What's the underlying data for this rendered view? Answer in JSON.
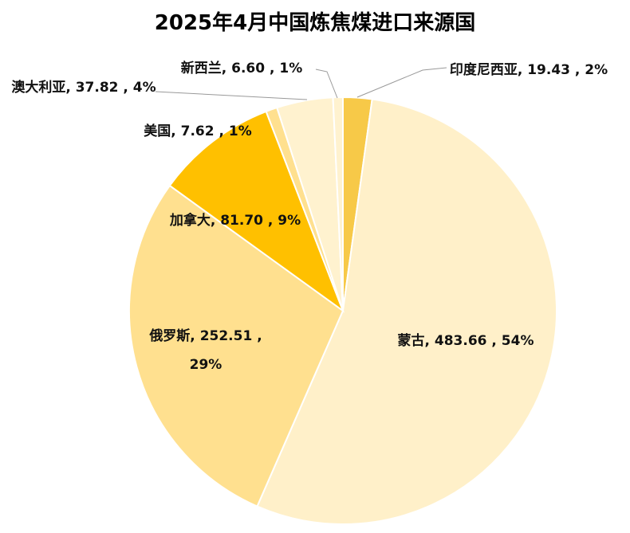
{
  "chart_data": {
    "type": "pie",
    "title": "2025年4月中国炼焦煤进口来源国",
    "categories": [
      "印度尼西亚",
      "蒙古",
      "俄罗斯",
      "加拿大",
      "美国",
      "澳大利亚",
      "新西兰"
    ],
    "values": [
      19.43,
      483.66,
      252.51,
      81.7,
      7.62,
      37.82,
      6.6
    ],
    "value_labels": [
      "印度尼西亚, 19.43 , 2%",
      "蒙古, 483.66 , 54%",
      "俄罗斯, 252.51 , 29%",
      "加拿大, 81.70 , 9%",
      "美国, 7.62 , 1%",
      "澳大利亚, 37.82 , 4%",
      "新西兰, 6.60 , 1%"
    ],
    "colors": [
      "#f7c948",
      "#fff0c9",
      "#ffe08f",
      "#ffc000",
      "#ffe08f",
      "#fff2cf",
      "#fff2cf"
    ]
  }
}
